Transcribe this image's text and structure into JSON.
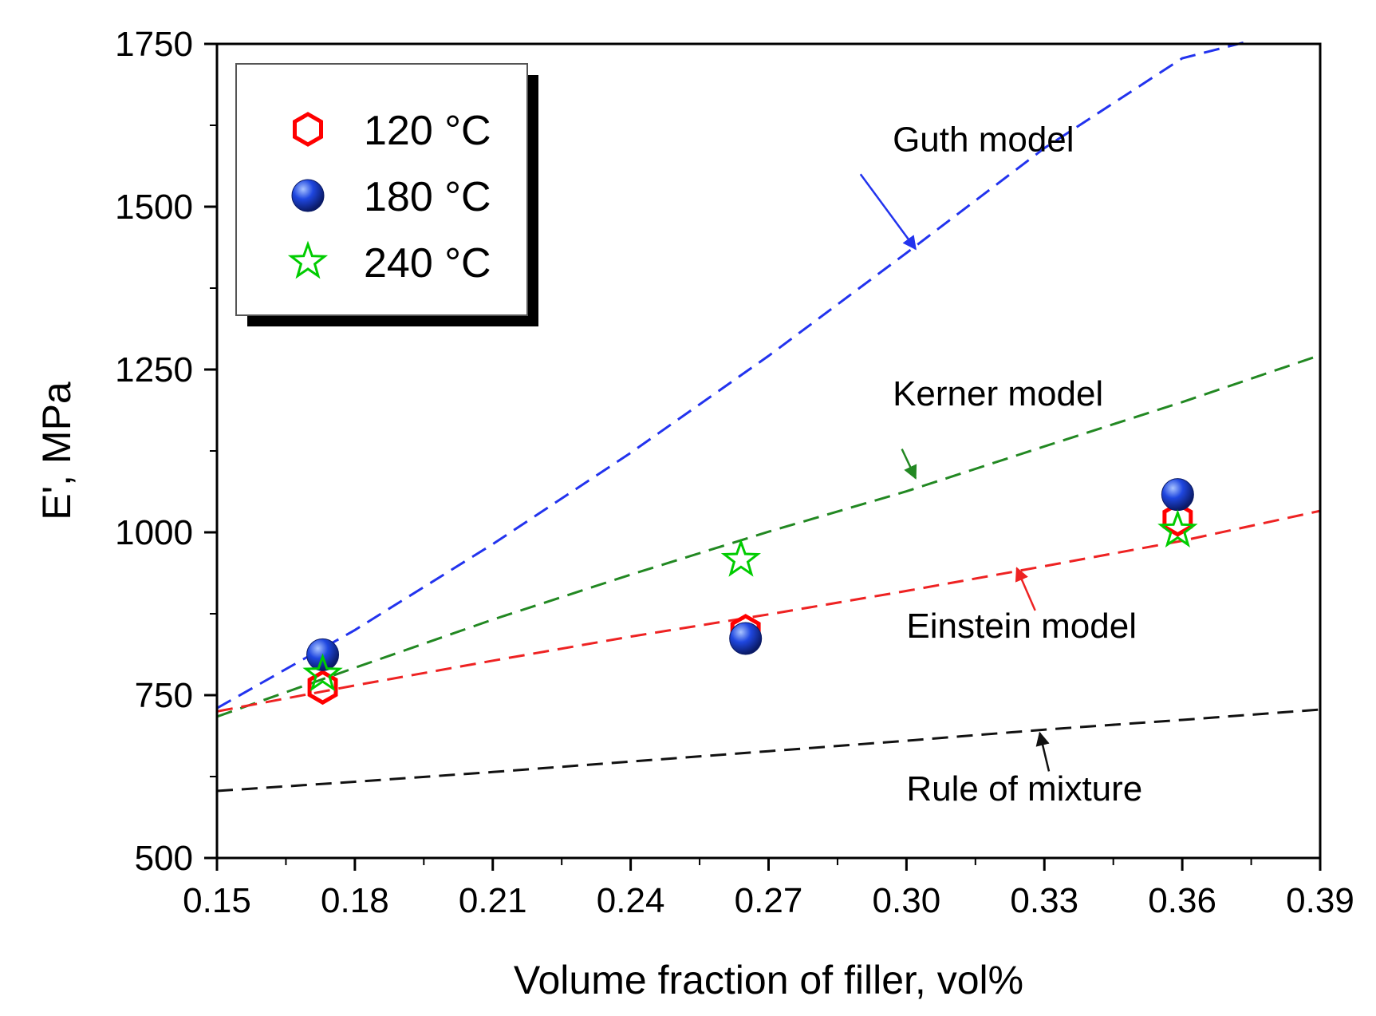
{
  "chart_data": {
    "type": "scatter",
    "title": "",
    "xlabel": "Volume fraction of filler, vol%",
    "ylabel": "E', MPa",
    "xlim": [
      0.15,
      0.39
    ],
    "ylim": [
      500,
      1750
    ],
    "x_ticks": [
      "0.15",
      "0.18",
      "0.21",
      "0.24",
      "0.27",
      "0.30",
      "0.33",
      "0.36",
      "0.39"
    ],
    "y_ticks": [
      "500",
      "750",
      "1000",
      "1250",
      "1500",
      "1750"
    ],
    "legend_position": "top-left",
    "series": [
      {
        "name": "120 °C",
        "label_main": "120",
        "label_unit": "°C",
        "marker": "hexagon-open",
        "color": "#ff0000",
        "x": [
          0.173,
          0.265,
          0.359
        ],
        "y": [
          762,
          848,
          1020
        ]
      },
      {
        "name": "180 °C",
        "label_main": "180",
        "label_unit": "°C",
        "marker": "sphere",
        "color": "#1a3fd6",
        "x": [
          0.173,
          0.265,
          0.359
        ],
        "y": [
          812,
          837,
          1058
        ]
      },
      {
        "name": "240 °C",
        "label_main": "240",
        "label_unit": "°C",
        "marker": "star-open",
        "color": "#00cc00",
        "x": [
          0.173,
          0.264,
          0.359
        ],
        "y": [
          782,
          958,
          1003
        ]
      }
    ],
    "models": [
      {
        "name": "Guth model",
        "color": "#2233ee",
        "x": [
          0.15,
          0.18,
          0.21,
          0.24,
          0.27,
          0.3,
          0.33,
          0.36,
          0.375
        ],
        "y": [
          730,
          850,
          982,
          1122,
          1271,
          1429,
          1590,
          1728,
          1755
        ],
        "label": "Guth model",
        "label_x": 0.297,
        "label_y": 1585,
        "arrow_from": [
          0.29,
          1550
        ],
        "arrow_to": [
          0.302,
          1435
        ]
      },
      {
        "name": "Kerner model",
        "color": "#228822",
        "x": [
          0.15,
          0.18,
          0.21,
          0.24,
          0.27,
          0.3,
          0.33,
          0.36,
          0.39
        ],
        "y": [
          717,
          792,
          866,
          935,
          1001,
          1063,
          1132,
          1200,
          1272
        ],
        "label": "Kerner model",
        "label_x": 0.297,
        "label_y": 1195,
        "arrow_from": [
          0.299,
          1128
        ],
        "arrow_to": [
          0.302,
          1083
        ]
      },
      {
        "name": "Einstein model",
        "color": "#ee2222",
        "x": [
          0.15,
          0.18,
          0.21,
          0.24,
          0.27,
          0.3,
          0.33,
          0.36,
          0.39
        ],
        "y": [
          725,
          765,
          803,
          840,
          874,
          910,
          948,
          987,
          1033
        ],
        "label": "Einstein model",
        "label_x": 0.3,
        "label_y": 838,
        "arrow_from": [
          0.328,
          880
        ],
        "arrow_to": [
          0.324,
          945
        ]
      },
      {
        "name": "Rule of mixture",
        "color": "#111111",
        "x": [
          0.15,
          0.18,
          0.21,
          0.24,
          0.27,
          0.3,
          0.33,
          0.36,
          0.39
        ],
        "y": [
          603,
          617,
          632,
          648,
          664,
          680,
          697,
          712,
          728
        ],
        "label": "Rule of mixture",
        "label_x": 0.3,
        "label_y": 588,
        "arrow_from": [
          0.331,
          633
        ],
        "arrow_to": [
          0.329,
          692
        ]
      }
    ]
  }
}
